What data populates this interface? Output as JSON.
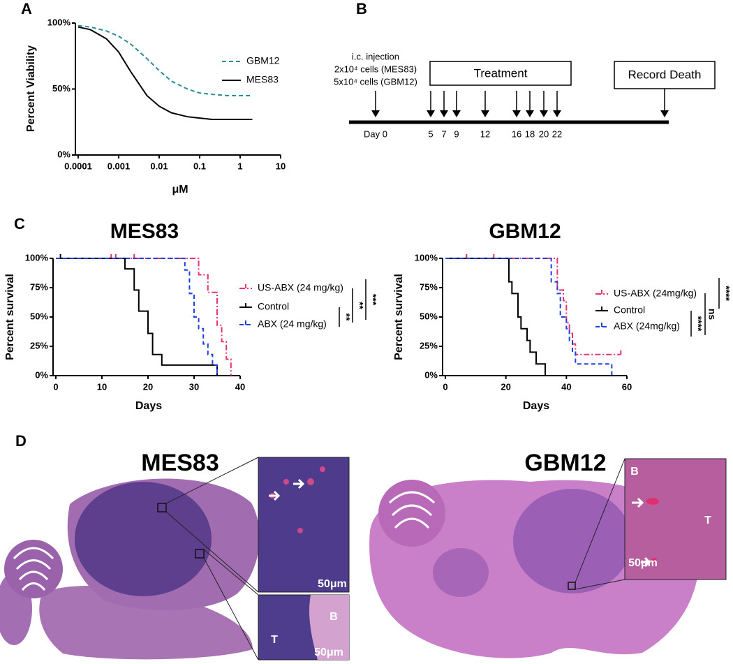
{
  "panel_labels": [
    "A",
    "B",
    "C",
    "D"
  ],
  "chart_data": [
    {
      "type": "line",
      "xscale": "log",
      "xlabel": "μM",
      "ylabel": "Percent  Viability",
      "x": [
        0.0001,
        0.0002,
        0.0005,
        0.001,
        0.002,
        0.005,
        0.01,
        0.02,
        0.05,
        0.1,
        0.2,
        0.5,
        1,
        2
      ],
      "series": [
        {
          "name": "GBM12",
          "color": "#2a8c96",
          "linestyle": "dashed",
          "values": [
            98,
            97,
            94,
            90,
            84,
            73,
            64,
            56,
            50,
            47,
            46,
            45,
            45,
            45
          ]
        },
        {
          "name": "MES83",
          "color": "#000000",
          "linestyle": "solid",
          "values": [
            97,
            95,
            88,
            78,
            63,
            45,
            37,
            32,
            29,
            28,
            27,
            27,
            27,
            27
          ]
        }
      ],
      "xlim": [
        0.0001,
        10
      ],
      "ylim": [
        0,
        100
      ],
      "xticks": [
        0.0001,
        0.001,
        0.01,
        0.1,
        1,
        10
      ],
      "yticks": [
        {
          "value": 0,
          "label": "0%"
        },
        {
          "value": 50,
          "label": "50%"
        },
        {
          "value": 100,
          "label": "100%"
        }
      ]
    },
    {
      "type": "step",
      "title": "MES83",
      "xlabel": "Days",
      "ylabel": "Percent survival",
      "series": [
        {
          "name": "US-ABX (24 mg/kg)",
          "color": "#e8336f",
          "linestyle": "dashdot",
          "x": [
            0,
            31,
            33,
            35,
            36,
            37,
            38
          ],
          "values": [
            100,
            86,
            71,
            43,
            29,
            14,
            0
          ],
          "censor_x": [
            12,
            13,
            17
          ],
          "censor_values": [
            100,
            100,
            100
          ]
        },
        {
          "name": "Control",
          "color": "#000000",
          "linestyle": "solid",
          "x": [
            0,
            15,
            17,
            18,
            20,
            21,
            23,
            35
          ],
          "values": [
            100,
            91,
            73,
            55,
            36,
            18,
            9,
            0
          ],
          "censor_x": [
            1
          ],
          "censor_values": [
            100
          ]
        },
        {
          "name": "ABX (24 mg/kg)",
          "color": "#1f3fe0",
          "linestyle": "dashed",
          "x": [
            0,
            28,
            29,
            30,
            31,
            32,
            33,
            34,
            35
          ],
          "values": [
            100,
            90,
            70,
            50,
            40,
            27,
            18,
            9,
            0
          ]
        }
      ],
      "significance": [
        "**",
        "**",
        "***"
      ],
      "xlim": [
        0,
        40
      ],
      "ylim": [
        0,
        100
      ],
      "xticks": [
        0,
        10,
        20,
        30,
        40
      ],
      "yticks": [
        {
          "value": 0,
          "label": "0%"
        },
        {
          "value": 25,
          "label": "25%"
        },
        {
          "value": 50,
          "label": "50%"
        },
        {
          "value": 75,
          "label": "75%"
        },
        {
          "value": 100,
          "label": "100%"
        }
      ]
    },
    {
      "type": "step",
      "title": "GBM12",
      "xlabel": "Days",
      "ylabel": "Percent survival",
      "series": [
        {
          "name": "US-ABX (24mg/kg)",
          "color": "#e8336f",
          "linestyle": "dashdot",
          "x": [
            0,
            37,
            39,
            40,
            41,
            42,
            43,
            44,
            58
          ],
          "values": [
            100,
            73,
            64,
            45,
            36,
            27,
            18,
            18,
            18
          ],
          "censor_x": [
            7,
            16,
            58
          ],
          "censor_values": [
            100,
            100,
            18
          ]
        },
        {
          "name": "Control",
          "color": "#000000",
          "linestyle": "solid",
          "x": [
            0,
            21,
            22,
            24,
            25,
            27,
            28,
            30,
            33
          ],
          "values": [
            100,
            80,
            70,
            50,
            40,
            30,
            20,
            10,
            0
          ]
        },
        {
          "name": "ABX (24mg/kg)",
          "color": "#1f3fe0",
          "linestyle": "dashed",
          "x": [
            0,
            35,
            37,
            38,
            40,
            41,
            42,
            43,
            55
          ],
          "values": [
            100,
            80,
            70,
            50,
            40,
            30,
            20,
            10,
            0
          ]
        }
      ],
      "significance": [
        "****",
        "ns",
        "****"
      ],
      "xlim": [
        0,
        60
      ],
      "ylim": [
        0,
        100
      ],
      "xticks": [
        0,
        20,
        40,
        60
      ],
      "yticks": [
        {
          "value": 0,
          "label": "0%"
        },
        {
          "value": 25,
          "label": "25%"
        },
        {
          "value": 50,
          "label": "50%"
        },
        {
          "value": 75,
          "label": "75%"
        },
        {
          "value": 100,
          "label": "100%"
        }
      ]
    }
  ],
  "timeline": {
    "injection": [
      "i.c. injection",
      "2x10⁴ cells (MES83)",
      "5x10⁴ cells (GBM12)"
    ],
    "treatment": "Treatment",
    "endpoint": "Record Death",
    "days": [
      "Day 0",
      "5",
      "7",
      "9",
      "12",
      "16",
      "18",
      "20",
      "22"
    ]
  },
  "histology": {
    "panels": [
      {
        "title": "MES83",
        "insets": [
          {
            "scale_bar": "50μm"
          },
          {
            "labels": [
              "B",
              "T"
            ],
            "scale_bar": "50μm"
          }
        ]
      },
      {
        "title": "GBM12",
        "insets": [
          {
            "labels": [
              "B",
              "T"
            ],
            "scale_bar": "50μm"
          }
        ]
      }
    ]
  }
}
